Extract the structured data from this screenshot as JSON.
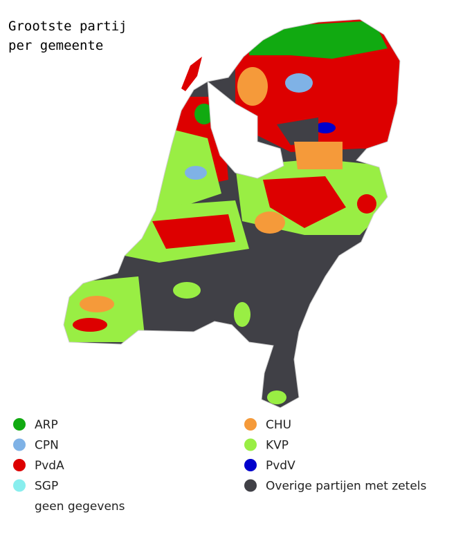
{
  "title": [
    "Grootste partij",
    "per gemeente"
  ],
  "legend": [
    {
      "name": "ARP",
      "color": "#11aa11"
    },
    {
      "name": "CPN",
      "color": "#7fb2e6"
    },
    {
      "name": "PvdA",
      "color": "#dd0000"
    },
    {
      "name": "SGP",
      "color": "#88eeee"
    },
    {
      "name": "geen gegevens",
      "color": "#ffffff"
    },
    {
      "name": "CHU",
      "color": "#f59a3a"
    },
    {
      "name": "KVP",
      "color": "#99ee44"
    },
    {
      "name": "PvdV",
      "color": "#0000cc"
    },
    {
      "name": "Overige partijen met zetels",
      "color": "#404046"
    }
  ]
}
